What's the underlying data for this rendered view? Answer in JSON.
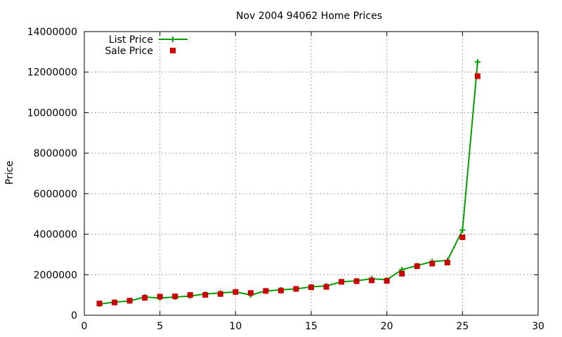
{
  "chart_data": {
    "type": "line",
    "title": "Nov 2004 94062 Home Prices",
    "xlabel": "",
    "ylabel": "Price",
    "xlim": [
      0,
      30
    ],
    "ylim": [
      0,
      14000000
    ],
    "xticks": [
      0,
      5,
      10,
      15,
      20,
      25,
      30
    ],
    "yticks": [
      0,
      2000000,
      4000000,
      6000000,
      8000000,
      10000000,
      12000000,
      14000000
    ],
    "grid": true,
    "legend_position": "top-left",
    "x": [
      1,
      2,
      3,
      4,
      5,
      6,
      7,
      8,
      9,
      10,
      11,
      12,
      13,
      14,
      15,
      16,
      17,
      18,
      19,
      20,
      21,
      22,
      23,
      24,
      25,
      26
    ],
    "series": [
      {
        "name": "List Price",
        "style": "line+cross",
        "color": "#00a000",
        "values": [
          550000,
          650000,
          700000,
          900000,
          850000,
          900000,
          950000,
          1050000,
          1100000,
          1150000,
          1000000,
          1200000,
          1250000,
          1300000,
          1400000,
          1450000,
          1650000,
          1700000,
          1800000,
          1750000,
          2250000,
          2450000,
          2650000,
          2700000,
          4200000,
          12500000
        ]
      },
      {
        "name": "Sale Price",
        "style": "square-markers",
        "color": "#cc0000",
        "values": [
          580000,
          630000,
          720000,
          860000,
          920000,
          930000,
          1000000,
          1000000,
          1050000,
          1150000,
          1100000,
          1200000,
          1220000,
          1300000,
          1380000,
          1400000,
          1650000,
          1680000,
          1720000,
          1700000,
          2050000,
          2420000,
          2550000,
          2600000,
          3850000,
          11800000
        ]
      }
    ]
  }
}
